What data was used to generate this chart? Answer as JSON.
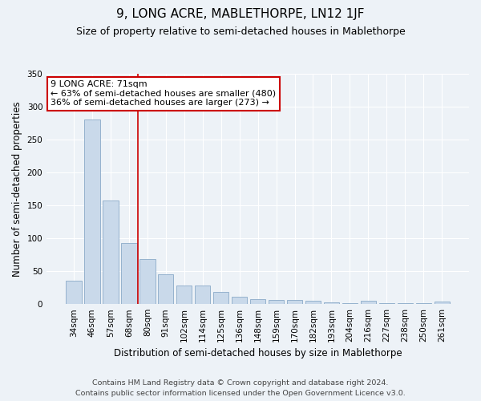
{
  "title": "9, LONG ACRE, MABLETHORPE, LN12 1JF",
  "subtitle": "Size of property relative to semi-detached houses in Mablethorpe",
  "xlabel": "Distribution of semi-detached houses by size in Mablethorpe",
  "ylabel": "Number of semi-detached properties",
  "categories": [
    "34sqm",
    "46sqm",
    "57sqm",
    "68sqm",
    "80sqm",
    "91sqm",
    "102sqm",
    "114sqm",
    "125sqm",
    "136sqm",
    "148sqm",
    "159sqm",
    "170sqm",
    "182sqm",
    "193sqm",
    "204sqm",
    "216sqm",
    "227sqm",
    "238sqm",
    "250sqm",
    "261sqm"
  ],
  "values": [
    36,
    280,
    157,
    93,
    68,
    45,
    28,
    28,
    18,
    11,
    7,
    6,
    6,
    5,
    3,
    2,
    5,
    2,
    2,
    1,
    4
  ],
  "bar_color": "#c9d9ea",
  "bar_edge_color": "#8aaac8",
  "vline_x_index": 3,
  "vline_color": "#cc0000",
  "annotation_line1": "9 LONG ACRE: 71sqm",
  "annotation_line2": "← 63% of semi-detached houses are smaller (480)",
  "annotation_line3": "36% of semi-detached houses are larger (273) →",
  "annotation_box_color": "#ffffff",
  "annotation_box_edge": "#cc0000",
  "ylim": [
    0,
    350
  ],
  "yticks": [
    0,
    50,
    100,
    150,
    200,
    250,
    300,
    350
  ],
  "footer_line1": "Contains HM Land Registry data © Crown copyright and database right 2024.",
  "footer_line2": "Contains public sector information licensed under the Open Government Licence v3.0.",
  "background_color": "#edf2f7",
  "grid_color": "#ffffff",
  "title_fontsize": 11,
  "subtitle_fontsize": 9,
  "axis_label_fontsize": 8.5,
  "tick_fontsize": 7.5,
  "footer_fontsize": 6.8,
  "annotation_fontsize": 8
}
